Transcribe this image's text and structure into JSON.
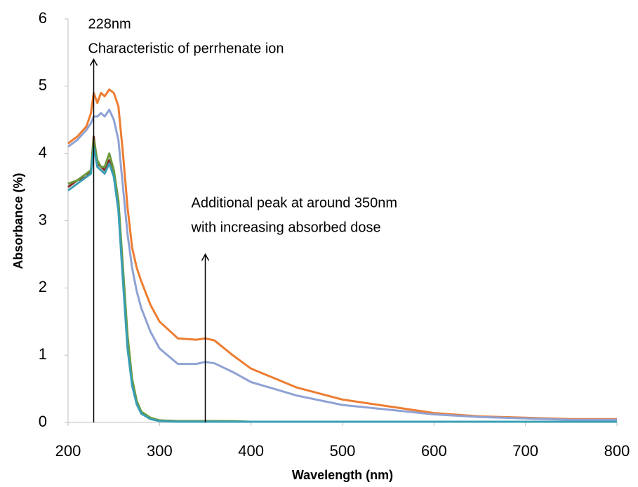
{
  "chart_data": {
    "type": "line",
    "x_label": "Wavelength (nm)",
    "y_label": "Absorbance (%)",
    "xlim": [
      200,
      800
    ],
    "ylim": [
      0,
      6
    ],
    "xticks": [
      200,
      300,
      400,
      500,
      600,
      700,
      800
    ],
    "yticks": [
      0,
      1,
      2,
      3,
      4,
      5,
      6
    ],
    "grid": false,
    "x": [
      200,
      210,
      220,
      225,
      228,
      232,
      236,
      240,
      245,
      250,
      255,
      260,
      265,
      270,
      275,
      280,
      290,
      300,
      320,
      340,
      350,
      360,
      380,
      400,
      450,
      500,
      550,
      600,
      650,
      700,
      750,
      800
    ],
    "series": [
      {
        "color": "#ed7d31",
        "values": [
          4.15,
          4.25,
          4.4,
          4.6,
          4.9,
          4.75,
          4.9,
          4.85,
          4.95,
          4.9,
          4.7,
          4.0,
          3.2,
          2.6,
          2.3,
          2.1,
          1.75,
          1.5,
          1.25,
          1.23,
          1.25,
          1.22,
          1.0,
          0.8,
          0.52,
          0.34,
          0.24,
          0.14,
          0.09,
          0.07,
          0.05,
          0.05
        ]
      },
      {
        "color": "#8fa2d4",
        "values": [
          4.1,
          4.2,
          4.35,
          4.45,
          4.55,
          4.55,
          4.6,
          4.55,
          4.65,
          4.5,
          4.2,
          3.5,
          2.8,
          2.3,
          1.95,
          1.7,
          1.35,
          1.1,
          0.87,
          0.87,
          0.9,
          0.88,
          0.75,
          0.6,
          0.4,
          0.26,
          0.19,
          0.12,
          0.08,
          0.06,
          0.04,
          0.04
        ]
      },
      {
        "color": "#8b2c2a",
        "values": [
          3.5,
          3.6,
          3.65,
          3.75,
          4.25,
          3.85,
          3.8,
          3.75,
          3.9,
          3.7,
          3.2,
          2.2,
          1.2,
          0.6,
          0.3,
          0.15,
          0.06,
          0.03,
          0.02,
          0.02,
          0.02,
          0.02,
          0.01,
          0.01,
          0.01,
          0.01,
          0.01,
          0.01,
          0.01,
          0.01,
          0.01,
          0.01
        ]
      },
      {
        "color": "#6b9a3c",
        "values": [
          3.55,
          3.6,
          3.7,
          3.75,
          4.2,
          3.9,
          3.8,
          3.8,
          4.0,
          3.75,
          3.3,
          2.3,
          1.3,
          0.65,
          0.32,
          0.16,
          0.07,
          0.03,
          0.02,
          0.02,
          0.02,
          0.02,
          0.02,
          0.01,
          0.01,
          0.01,
          0.01,
          0.01,
          0.01,
          0.01,
          0.01,
          0.01
        ]
      },
      {
        "color": "#3a9fb5",
        "values": [
          3.45,
          3.55,
          3.65,
          3.7,
          4.1,
          3.8,
          3.75,
          3.7,
          3.85,
          3.65,
          3.15,
          2.1,
          1.1,
          0.55,
          0.27,
          0.13,
          0.05,
          0.02,
          0.01,
          0.01,
          0.01,
          0.01,
          0.01,
          0.01,
          0.01,
          0.01,
          0.01,
          0.01,
          0.01,
          0.01,
          0.01,
          0.01
        ]
      }
    ],
    "annotations": [
      {
        "text": [
          "228nm",
          "Characteristic of perrhenate ion"
        ],
        "x": 228,
        "y": 5.4
      },
      {
        "text": [
          "Additional peak at around 350nm",
          "with increasing absorbed dose"
        ],
        "x": 350,
        "y": 2.5
      }
    ]
  }
}
